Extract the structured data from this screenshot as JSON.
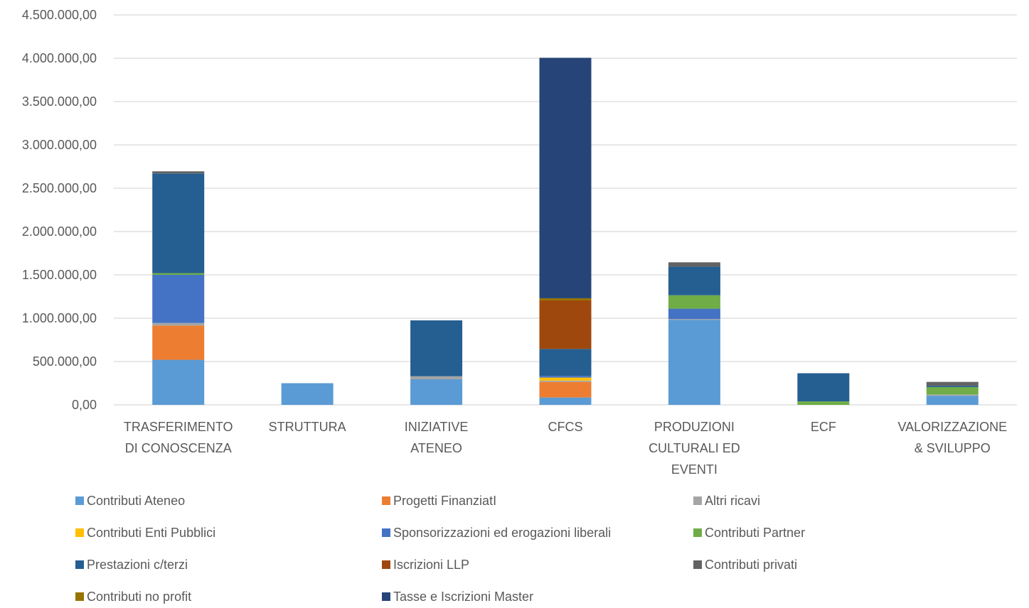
{
  "chart_data": {
    "type": "bar",
    "stacked": true,
    "categories": [
      [
        "TRASFERIMENTO",
        "DI CONOSCENZA"
      ],
      [
        "STRUTTURA"
      ],
      [
        "INIZIATIVE",
        "ATENEO"
      ],
      [
        "CFCS"
      ],
      [
        "PRODUZIONI",
        "CULTURALI ED",
        "EVENTI"
      ],
      [
        "ECF"
      ],
      [
        "VALORIZZAZIONE",
        "& SVILUPPO"
      ]
    ],
    "ylim": [
      0,
      4500000
    ],
    "yticks": [
      0,
      500000,
      1000000,
      1500000,
      2000000,
      2500000,
      3000000,
      3500000,
      4000000,
      4500000
    ],
    "ytick_labels": [
      "0,00",
      "500.000,00",
      "1.000.000,00",
      "1.500.000,00",
      "2.000.000,00",
      "2.500.000,00",
      "3.000.000,00",
      "3.500.000,00",
      "4.000.000,00",
      "4.500.000,00"
    ],
    "grid": true,
    "legend_position": "bottom",
    "series": [
      {
        "name": "Contributi Ateneo",
        "color": "#5B9BD5",
        "values": [
          520000,
          250000,
          295000,
          85000,
          980000,
          0,
          105000
        ]
      },
      {
        "name": "Progetti FinanziatI",
        "color": "#ED7D31",
        "values": [
          395000,
          0,
          0,
          180000,
          0,
          0,
          0
        ]
      },
      {
        "name": "Altri ricavi",
        "color": "#A5A5A5",
        "values": [
          30000,
          0,
          35000,
          15000,
          10000,
          0,
          15000
        ]
      },
      {
        "name": "Contributi Enti Pubblici",
        "color": "#FFC000",
        "values": [
          0,
          0,
          0,
          35000,
          0,
          0,
          0
        ]
      },
      {
        "name": "Sponsorizzazioni ed erogazioni liberali",
        "color": "#4472C4",
        "values": [
          555000,
          0,
          0,
          20000,
          120000,
          0,
          0
        ]
      },
      {
        "name": "Contributi Partner",
        "color": "#70AD47",
        "values": [
          20000,
          0,
          0,
          0,
          155000,
          40000,
          85000
        ]
      },
      {
        "name": "Prestazioni c/terzi",
        "color": "#255E91",
        "values": [
          1150000,
          0,
          645000,
          310000,
          330000,
          325000,
          15000
        ]
      },
      {
        "name": "Iscrizioni LLP",
        "color": "#9E480E",
        "values": [
          0,
          0,
          0,
          560000,
          0,
          0,
          0
        ]
      },
      {
        "name": "Contributi privati",
        "color": "#636363",
        "values": [
          25000,
          0,
          0,
          0,
          50000,
          0,
          45000
        ]
      },
      {
        "name": "Contributi no profit",
        "color": "#997300",
        "values": [
          0,
          0,
          0,
          25000,
          0,
          0,
          0
        ]
      },
      {
        "name": "Tasse e Iscrizioni Master",
        "color": "#264478",
        "values": [
          0,
          0,
          0,
          2775000,
          0,
          0,
          0
        ]
      }
    ]
  }
}
